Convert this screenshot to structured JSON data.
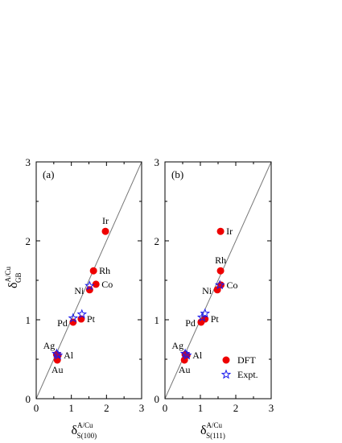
{
  "chart_data": [
    {
      "type": "scatter",
      "panel_label": "(a)",
      "xlabel": "δ",
      "xlabel_sup": "A/Cu",
      "xlabel_sub": "S(100)",
      "ylabel": "δ",
      "ylabel_sup": "A/Cu",
      "ylabel_sub": "GB",
      "xlim": [
        0,
        3
      ],
      "ylim": [
        0,
        3
      ],
      "xticks": [
        "0",
        "1",
        "2",
        "3"
      ],
      "yticks": [
        "0",
        "1",
        "2",
        "3"
      ],
      "reference_line": "y = x",
      "series": [
        {
          "name": "DFT",
          "marker": "filled-circle",
          "color": "#ee0000",
          "points": [
            {
              "label": "Ir",
              "x": 1.97,
              "y": 2.12
            },
            {
              "label": "Rh",
              "x": 1.63,
              "y": 1.62
            },
            {
              "label": "Co",
              "x": 1.7,
              "y": 1.45
            },
            {
              "label": "Ni",
              "x": 1.52,
              "y": 1.38
            },
            {
              "label": "Pt",
              "x": 1.28,
              "y": 1.01
            },
            {
              "label": "Pd",
              "x": 1.05,
              "y": 0.97
            },
            {
              "label": "Ag",
              "x": 0.58,
              "y": 0.56
            },
            {
              "label": "Al",
              "x": 0.62,
              "y": 0.55
            },
            {
              "label": "Au",
              "x": 0.6,
              "y": 0.49
            }
          ]
        },
        {
          "name": "Expt.",
          "marker": "open-star",
          "color": "#1a1aee",
          "points": [
            {
              "x": 1.52,
              "y": 1.43
            },
            {
              "x": 1.3,
              "y": 1.07
            },
            {
              "x": 1.05,
              "y": 1.02
            },
            {
              "x": 0.58,
              "y": 0.57
            },
            {
              "x": 0.62,
              "y": 0.55
            }
          ]
        }
      ],
      "point_labels": [
        {
          "text": "Ir",
          "x": 1.97,
          "y": 2.12,
          "anchor": "above"
        },
        {
          "text": "Rh",
          "x": 1.63,
          "y": 1.62,
          "anchor": "right"
        },
        {
          "text": "Co",
          "x": 1.7,
          "y": 1.45,
          "anchor": "right"
        },
        {
          "text": "Ni",
          "x": 1.52,
          "y": 1.38,
          "anchor": "left"
        },
        {
          "text": "Pt",
          "x": 1.28,
          "y": 1.01,
          "anchor": "right"
        },
        {
          "text": "Pd",
          "x": 1.05,
          "y": 0.97,
          "anchor": "left"
        },
        {
          "text": "Ag",
          "x": 0.58,
          "y": 0.56,
          "anchor": "above-left"
        },
        {
          "text": "Al",
          "x": 0.62,
          "y": 0.55,
          "anchor": "right"
        },
        {
          "text": "Au",
          "x": 0.6,
          "y": 0.49,
          "anchor": "below"
        }
      ]
    },
    {
      "type": "scatter",
      "panel_label": "(b)",
      "xlabel": "δ",
      "xlabel_sup": "A/Cu",
      "xlabel_sub": "S(111)",
      "xlim": [
        0,
        3
      ],
      "ylim": [
        0,
        3
      ],
      "xticks": [
        "0",
        "1",
        "2",
        "3"
      ],
      "yticks": [
        "0",
        "1",
        "2",
        "3"
      ],
      "reference_line": "y = x",
      "legend": {
        "placement": "bottom-right",
        "entries": [
          {
            "name": "DFT",
            "marker": "filled-circle"
          },
          {
            "name": "Expt.",
            "marker": "open-star"
          }
        ]
      },
      "series": [
        {
          "name": "DFT",
          "marker": "filled-circle",
          "color": "#ee0000",
          "points": [
            {
              "label": "Ir",
              "x": 1.57,
              "y": 2.12
            },
            {
              "label": "Rh",
              "x": 1.57,
              "y": 1.62
            },
            {
              "label": "Co",
              "x": 1.58,
              "y": 1.44
            },
            {
              "label": "Ni",
              "x": 1.48,
              "y": 1.38
            },
            {
              "label": "Pt",
              "x": 1.13,
              "y": 1.01
            },
            {
              "label": "Pd",
              "x": 1.02,
              "y": 0.97
            },
            {
              "label": "Ag",
              "x": 0.57,
              "y": 0.56
            },
            {
              "label": "Al",
              "x": 0.62,
              "y": 0.55
            },
            {
              "label": "Au",
              "x": 0.55,
              "y": 0.49
            }
          ]
        },
        {
          "name": "Expt.",
          "marker": "open-star",
          "color": "#1a1aee",
          "points": [
            {
              "x": 1.55,
              "y": 1.44
            },
            {
              "x": 1.13,
              "y": 1.08
            },
            {
              "x": 1.05,
              "y": 1.03
            },
            {
              "x": 0.57,
              "y": 0.57
            },
            {
              "x": 0.62,
              "y": 0.55
            }
          ]
        }
      ],
      "point_labels": [
        {
          "text": "Ir",
          "x": 1.57,
          "y": 2.12,
          "anchor": "right"
        },
        {
          "text": "Rh",
          "x": 1.57,
          "y": 1.62,
          "anchor": "above"
        },
        {
          "text": "Co",
          "x": 1.58,
          "y": 1.44,
          "anchor": "right"
        },
        {
          "text": "Ni",
          "x": 1.48,
          "y": 1.38,
          "anchor": "left"
        },
        {
          "text": "Pt",
          "x": 1.13,
          "y": 1.01,
          "anchor": "right"
        },
        {
          "text": "Pd",
          "x": 1.02,
          "y": 0.97,
          "anchor": "left"
        },
        {
          "text": "Ag",
          "x": 0.57,
          "y": 0.56,
          "anchor": "above-left"
        },
        {
          "text": "Al",
          "x": 0.62,
          "y": 0.55,
          "anchor": "right"
        },
        {
          "text": "Au",
          "x": 0.55,
          "y": 0.49,
          "anchor": "below"
        }
      ]
    }
  ],
  "colors": {
    "dft_marker": "#ee0000",
    "expt_marker": "#1a1aee",
    "reference_line": "#777777",
    "axes": "#000000"
  }
}
